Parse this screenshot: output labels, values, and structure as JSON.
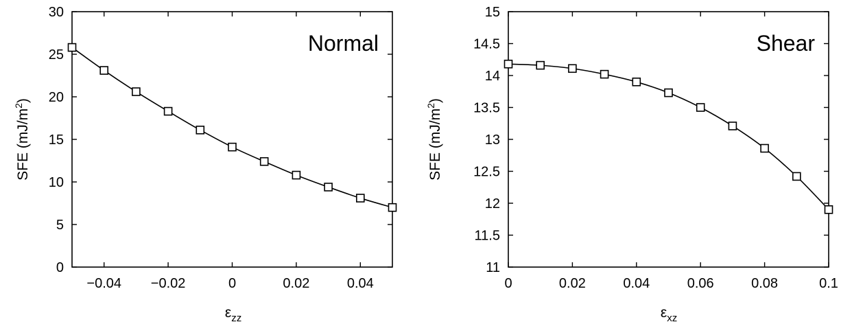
{
  "chart_data": [
    {
      "type": "line",
      "panel_label": "Normal",
      "xlabel_main": "ε",
      "xlabel_sub": "zz",
      "ylabel_main": "SFE (mJ/m",
      "ylabel_sup": "2",
      "ylabel_end": ")",
      "xlim": [
        -0.05,
        0.05
      ],
      "ylim": [
        0,
        30
      ],
      "xticks": [
        -0.04,
        -0.02,
        0,
        0.02,
        0.04
      ],
      "xtick_labels": [
        "−0.04",
        "−0.02",
        "0",
        "0.02",
        "0.04"
      ],
      "yticks": [
        0,
        5,
        10,
        15,
        20,
        25,
        30
      ],
      "ytick_labels": [
        "0",
        "5",
        "10",
        "15",
        "20",
        "25",
        "30"
      ],
      "marker": "open-square",
      "grid": false,
      "x": [
        -0.05,
        -0.04,
        -0.03,
        -0.02,
        -0.01,
        0,
        0.01,
        0.02,
        0.03,
        0.04,
        0.05
      ],
      "y": [
        25.8,
        23.1,
        20.6,
        18.3,
        16.1,
        14.1,
        12.4,
        10.8,
        9.4,
        8.1,
        7.0
      ]
    },
    {
      "type": "line",
      "panel_label": "Shear",
      "xlabel_main": "ε",
      "xlabel_sub": "xz",
      "ylabel_main": "SFE (mJ/m",
      "ylabel_sup": "2",
      "ylabel_end": ")",
      "xlim": [
        0,
        0.1
      ],
      "ylim": [
        11,
        15
      ],
      "xticks": [
        0,
        0.02,
        0.04,
        0.06,
        0.08,
        0.1
      ],
      "xtick_labels": [
        "0",
        "0.02",
        "0.04",
        "0.06",
        "0.08",
        "0.1"
      ],
      "yticks": [
        11,
        11.5,
        12,
        12.5,
        13,
        13.5,
        14,
        14.5,
        15
      ],
      "ytick_labels": [
        "11",
        "11.5",
        "12",
        "12.5",
        "13",
        "13.5",
        "14",
        "14.5",
        "15"
      ],
      "marker": "open-square",
      "grid": false,
      "x": [
        0,
        0.01,
        0.02,
        0.03,
        0.04,
        0.05,
        0.06,
        0.07,
        0.08,
        0.09,
        0.1
      ],
      "y": [
        14.18,
        14.16,
        14.11,
        14.02,
        13.9,
        13.73,
        13.5,
        13.21,
        12.86,
        12.42,
        11.9
      ]
    }
  ]
}
